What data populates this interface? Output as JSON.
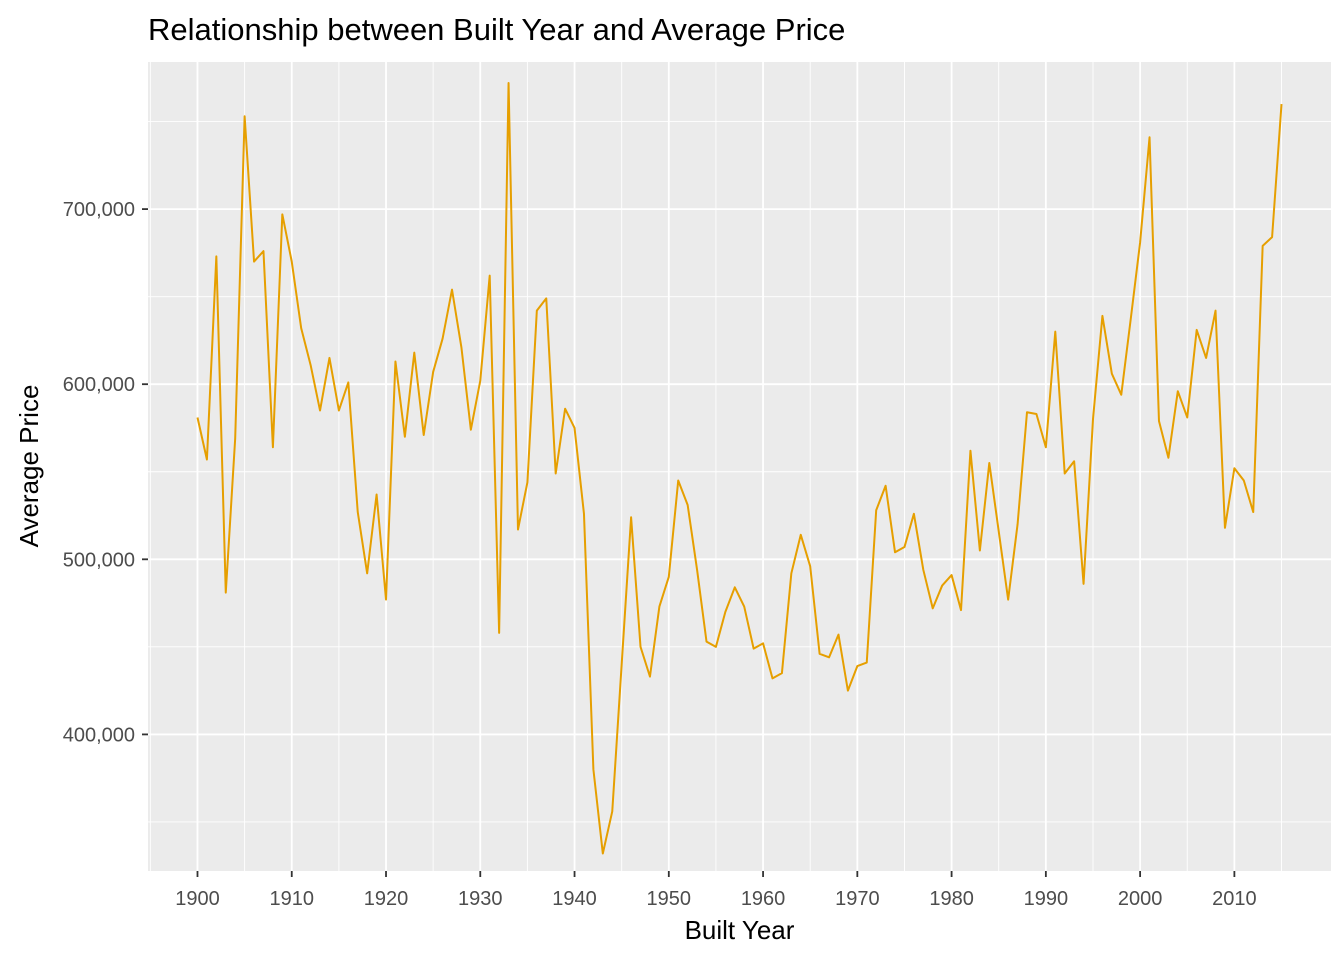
{
  "chart_data": {
    "type": "line",
    "title": "Relationship between Built Year and Average Price",
    "xlabel": "Built Year",
    "ylabel": "Average Price",
    "xlim": [
      1894.75,
      2020.25
    ],
    "ylim": [
      322000,
      784000
    ],
    "x_ticks": [
      1900,
      1910,
      1920,
      1930,
      1940,
      1950,
      1960,
      1970,
      1980,
      1990,
      2000,
      2010
    ],
    "x_tick_labels": [
      "1900",
      "1910",
      "1920",
      "1930",
      "1940",
      "1950",
      "1960",
      "1970",
      "1980",
      "1990",
      "2000",
      "2010"
    ],
    "y_ticks": [
      400000,
      500000,
      600000,
      700000
    ],
    "y_tick_labels": [
      "400,000",
      "500,000",
      "600,000",
      "700,000"
    ],
    "grid": true,
    "legend": "none",
    "line_color": "#E69F00",
    "panel_color": "#EBEBEB",
    "series": [
      {
        "x": [
          1900,
          1901,
          1902,
          1903,
          1904,
          1905,
          1906,
          1907,
          1908,
          1909,
          1910,
          1911,
          1912,
          1913,
          1914,
          1915,
          1916,
          1917,
          1918,
          1919,
          1920,
          1921,
          1922,
          1923,
          1924,
          1925,
          1926,
          1927,
          1928,
          1929,
          1930,
          1931,
          1932,
          1933,
          1934,
          1935,
          1936,
          1937,
          1938,
          1939,
          1940,
          1941,
          1942,
          1943,
          1944,
          1945,
          1946,
          1947,
          1948,
          1949,
          1950,
          1951,
          1952,
          1953,
          1954,
          1955,
          1956,
          1957,
          1958,
          1959,
          1960,
          1961,
          1962,
          1963,
          1964,
          1965,
          1966,
          1967,
          1968,
          1969,
          1970,
          1971,
          1972,
          1973,
          1974,
          1975,
          1976,
          1977,
          1978,
          1979,
          1980,
          1981,
          1982,
          1983,
          1984,
          1985,
          1986,
          1987,
          1988,
          1989,
          1990,
          1991,
          1992,
          1993,
          1994,
          1995,
          1996,
          1997,
          1998,
          1999,
          2000,
          2001,
          2002,
          2003,
          2004,
          2005,
          2006,
          2007,
          2008,
          2009,
          2010,
          2011,
          2012,
          2013,
          2014,
          2015
        ],
        "values": [
          581000,
          557000,
          673000,
          481000,
          569000,
          753000,
          670000,
          676000,
          564000,
          697000,
          670000,
          632000,
          611000,
          585000,
          615000,
          585000,
          601000,
          527000,
          492000,
          537000,
          477000,
          613000,
          570000,
          618000,
          571000,
          607000,
          626000,
          654000,
          621000,
          574000,
          602000,
          662000,
          458000,
          772000,
          517000,
          544000,
          642000,
          649000,
          549000,
          586000,
          575000,
          526000,
          380000,
          332000,
          356000,
          440000,
          524000,
          450000,
          433000,
          473000,
          490000,
          545000,
          531000,
          494000,
          453000,
          450000,
          470000,
          484000,
          473000,
          449000,
          452000,
          432000,
          435000,
          492000,
          514000,
          496000,
          446000,
          444000,
          457000,
          425000,
          439000,
          441000,
          528000,
          542000,
          504000,
          507000,
          526000,
          494000,
          472000,
          485000,
          491000,
          471000,
          562000,
          505000,
          555000,
          516000,
          477000,
          520000,
          584000,
          583000,
          564000,
          630000,
          549000,
          556000,
          486000,
          580000,
          639000,
          606000,
          594000,
          637000,
          681000,
          741000,
          579000,
          558000,
          596000,
          581000,
          631000,
          615000,
          642000,
          518000,
          552000,
          545000,
          527000,
          679000,
          684000,
          760000
        ]
      }
    ]
  }
}
